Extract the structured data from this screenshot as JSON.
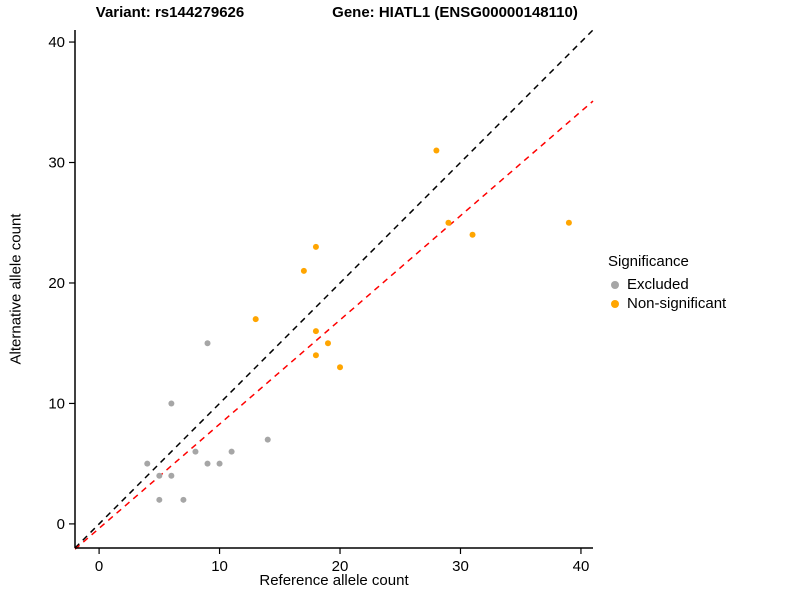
{
  "chart_data": {
    "type": "scatter",
    "title_left": "Variant: rs144279626",
    "title_right": "Gene: HIATL1 (ENSG00000148110)",
    "xlabel": "Reference allele count",
    "ylabel": "Alternative allele count",
    "xlim": [
      -2,
      41
    ],
    "ylim": [
      -2,
      41
    ],
    "xticks": [
      0,
      10,
      20,
      30,
      40
    ],
    "yticks": [
      0,
      10,
      20,
      30,
      40
    ],
    "grid": false,
    "legend_position": "right",
    "legend_title": "Significance",
    "series": [
      {
        "name": "Excluded",
        "color": "#A6A6A6",
        "points": [
          [
            4,
            5
          ],
          [
            5,
            4
          ],
          [
            5,
            2
          ],
          [
            6,
            4
          ],
          [
            6,
            10
          ],
          [
            7,
            2
          ],
          [
            8,
            6
          ],
          [
            9,
            5
          ],
          [
            9,
            15
          ],
          [
            10,
            5
          ],
          [
            11,
            6
          ],
          [
            14,
            7
          ]
        ]
      },
      {
        "name": "Non-significant",
        "color": "#FFA500",
        "points": [
          [
            13,
            17
          ],
          [
            17,
            21
          ],
          [
            18,
            23
          ],
          [
            18,
            16
          ],
          [
            18,
            14
          ],
          [
            19,
            15
          ],
          [
            20,
            13
          ],
          [
            28,
            31
          ],
          [
            29,
            25
          ],
          [
            31,
            24
          ],
          [
            39,
            25
          ]
        ]
      }
    ],
    "lines": [
      {
        "name": "identity-line",
        "color": "#000000",
        "dashed": true,
        "x1": -2,
        "y1": -2,
        "x2": 41,
        "y2": 41
      },
      {
        "name": "fit-line",
        "color": "#FF0000",
        "dashed": true,
        "x1": -2,
        "y1": -2.1,
        "x2": 41,
        "y2": 35.1
      }
    ]
  }
}
